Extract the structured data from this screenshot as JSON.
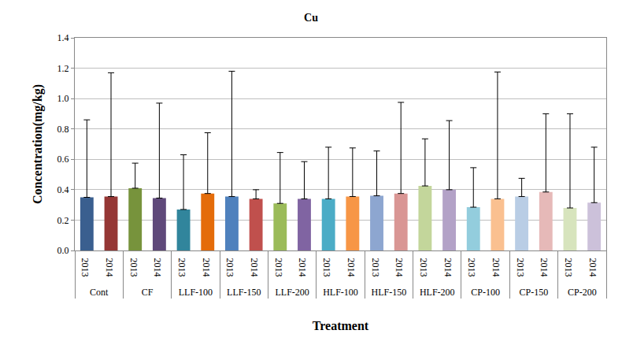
{
  "chart_data": {
    "type": "bar",
    "title": "Cu",
    "x_label": "Treatment",
    "y_label": "Concentration(mg/kg)",
    "ylim": [
      0,
      1.4
    ],
    "yticks": [
      {
        "value": 0,
        "label": "0.0"
      },
      {
        "value": 0.2,
        "label": "0.2"
      },
      {
        "value": 0.4,
        "label": "0.4"
      },
      {
        "value": 0.6,
        "label": "0.6"
      },
      {
        "value": 0.8,
        "label": "0.8"
      },
      {
        "value": 1.0,
        "label": "1.0"
      },
      {
        "value": 1.2,
        "label": "1.2"
      },
      {
        "value": 1.4,
        "label": "1.4"
      }
    ],
    "grid": true,
    "groups": [
      {
        "name": "Cont",
        "categories": [
          "2013",
          "2014"
        ],
        "values": [
          0.35,
          0.355
        ],
        "errors": [
          0.51,
          0.815
        ],
        "colors": [
          "#3A5F8F",
          "#953735"
        ]
      },
      {
        "name": "CF",
        "categories": [
          "2013",
          "2014"
        ],
        "values": [
          0.41,
          0.345
        ],
        "errors": [
          0.165,
          0.625
        ],
        "colors": [
          "#77933C",
          "#5F497A"
        ]
      },
      {
        "name": "LLF-100",
        "categories": [
          "2013",
          "2014"
        ],
        "values": [
          0.27,
          0.375
        ],
        "errors": [
          0.36,
          0.4
        ],
        "colors": [
          "#31859C",
          "#E46C0A"
        ]
      },
      {
        "name": "LLF-150",
        "categories": [
          "2013",
          "2014"
        ],
        "values": [
          0.355,
          0.34
        ],
        "errors": [
          0.825,
          0.06
        ],
        "colors": [
          "#4F81BD",
          "#C0504D"
        ]
      },
      {
        "name": "LLF-200",
        "categories": [
          "2013",
          "2014"
        ],
        "values": [
          0.31,
          0.34
        ],
        "errors": [
          0.335,
          0.245
        ],
        "colors": [
          "#9BBB59",
          "#8064A2"
        ]
      },
      {
        "name": "HLF-100",
        "categories": [
          "2013",
          "2014"
        ],
        "values": [
          0.34,
          0.355
        ],
        "errors": [
          0.34,
          0.32
        ],
        "colors": [
          "#4BACC6",
          "#F79646"
        ]
      },
      {
        "name": "HLF-150",
        "categories": [
          "2013",
          "2014"
        ],
        "values": [
          0.36,
          0.375
        ],
        "errors": [
          0.295,
          0.6
        ],
        "colors": [
          "#8DA6D0",
          "#D99694"
        ]
      },
      {
        "name": "HLF-200",
        "categories": [
          "2013",
          "2014"
        ],
        "values": [
          0.425,
          0.4
        ],
        "errors": [
          0.31,
          0.455
        ],
        "colors": [
          "#C3D69B",
          "#B3A2C7"
        ]
      },
      {
        "name": "CP-100",
        "categories": [
          "2013",
          "2014"
        ],
        "values": [
          0.285,
          0.34
        ],
        "errors": [
          0.26,
          0.835
        ],
        "colors": [
          "#93CDDD",
          "#FAC090"
        ]
      },
      {
        "name": "CP-150",
        "categories": [
          "2013",
          "2014"
        ],
        "values": [
          0.355,
          0.385
        ],
        "errors": [
          0.12,
          0.515
        ],
        "colors": [
          "#B9CDE5",
          "#E6B9B8"
        ]
      },
      {
        "name": "CP-200",
        "categories": [
          "2013",
          "2014"
        ],
        "values": [
          0.28,
          0.315
        ],
        "errors": [
          0.62,
          0.365
        ],
        "colors": [
          "#D7E4BD",
          "#CCC1DA"
        ]
      }
    ]
  }
}
